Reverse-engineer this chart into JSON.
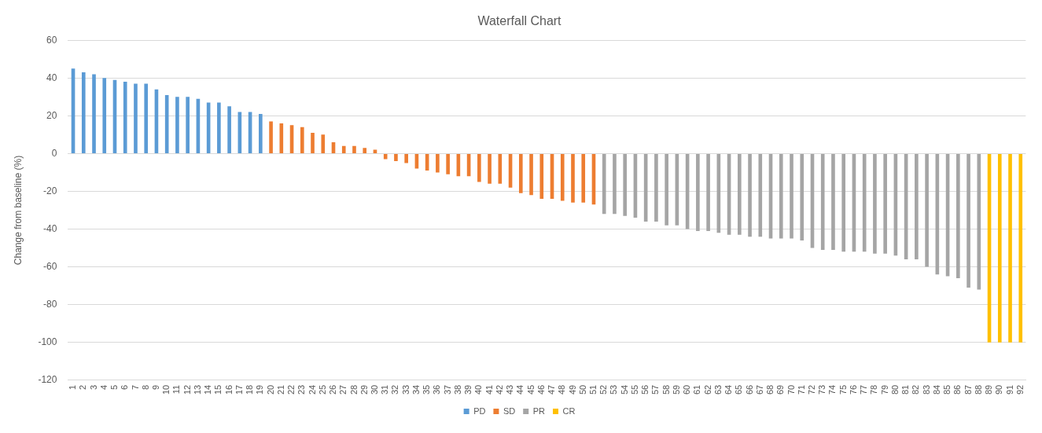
{
  "chart_data": {
    "type": "bar",
    "title": "Waterfall Chart",
    "ylabel": "Change from baseline (%)",
    "categories": [
      "1",
      "2",
      "3",
      "4",
      "5",
      "6",
      "7",
      "8",
      "9",
      "10",
      "11",
      "12",
      "13",
      "14",
      "15",
      "16",
      "17",
      "18",
      "19",
      "20",
      "21",
      "22",
      "23",
      "24",
      "25",
      "26",
      "27",
      "28",
      "29",
      "30",
      "31",
      "32",
      "33",
      "34",
      "35",
      "36",
      "37",
      "38",
      "39",
      "40",
      "41",
      "42",
      "43",
      "44",
      "45",
      "46",
      "47",
      "48",
      "49",
      "50",
      "51",
      "52",
      "53",
      "54",
      "55",
      "56",
      "57",
      "58",
      "59",
      "60",
      "61",
      "62",
      "63",
      "64",
      "65",
      "66",
      "67",
      "68",
      "69",
      "70",
      "71",
      "72",
      "73",
      "74",
      "75",
      "76",
      "77",
      "78",
      "79",
      "80",
      "81",
      "82",
      "83",
      "84",
      "85",
      "86",
      "87",
      "88",
      "89",
      "90",
      "91",
      "92"
    ],
    "series": [
      {
        "name": "PD",
        "color": "#5b9bd5",
        "values": [
          45,
          43,
          42,
          40,
          39,
          38,
          37,
          37,
          34,
          31,
          30,
          30,
          29,
          27,
          27,
          25,
          22,
          22,
          21,
          null,
          null,
          null,
          null,
          null,
          null,
          null,
          null,
          null,
          null,
          null,
          null,
          null,
          null,
          null,
          null,
          null,
          null,
          null,
          null,
          null,
          null,
          null,
          null,
          null,
          null,
          null,
          null,
          null,
          null,
          null,
          null,
          null,
          null,
          null,
          null,
          null,
          null,
          null,
          null,
          null,
          null,
          null,
          null,
          null,
          null,
          null,
          null,
          null,
          null,
          null,
          null,
          null,
          null,
          null,
          null,
          null,
          null,
          null,
          null,
          null,
          null,
          null,
          null,
          null,
          null,
          null,
          null,
          null,
          null,
          null,
          null,
          null
        ]
      },
      {
        "name": "SD",
        "color": "#ed7d31",
        "values": [
          null,
          null,
          null,
          null,
          null,
          null,
          null,
          null,
          null,
          null,
          null,
          null,
          null,
          null,
          null,
          null,
          null,
          null,
          null,
          17,
          16,
          15,
          14,
          11,
          10,
          6,
          4,
          4,
          3,
          2,
          -3,
          -4,
          -5,
          -8,
          -9,
          -10,
          -11,
          -12,
          -12,
          -15,
          -16,
          -16,
          -18,
          -21,
          -22,
          -24,
          -24,
          -25,
          -26,
          -26,
          -27,
          null,
          null,
          null,
          null,
          null,
          null,
          null,
          null,
          null,
          null,
          null,
          null,
          null,
          null,
          null,
          null,
          null,
          null,
          null,
          null,
          null,
          null,
          null,
          null,
          null,
          null,
          null,
          null,
          null,
          null,
          null,
          null,
          null,
          null,
          null,
          null,
          null,
          null,
          null,
          null,
          null
        ]
      },
      {
        "name": "PR",
        "color": "#a5a5a5",
        "values": [
          null,
          null,
          null,
          null,
          null,
          null,
          null,
          null,
          null,
          null,
          null,
          null,
          null,
          null,
          null,
          null,
          null,
          null,
          null,
          null,
          null,
          null,
          null,
          null,
          null,
          null,
          null,
          null,
          null,
          null,
          null,
          null,
          null,
          null,
          null,
          null,
          null,
          null,
          null,
          null,
          null,
          null,
          null,
          null,
          null,
          null,
          null,
          null,
          null,
          null,
          null,
          -32,
          -32,
          -33,
          -34,
          -36,
          -36,
          -38,
          -38,
          -40,
          -41,
          -41,
          -42,
          -43,
          -43,
          -44,
          -44,
          -45,
          -45,
          -45,
          -46,
          -50,
          -51,
          -51,
          -52,
          -52,
          -52,
          -53,
          -53,
          -54,
          -56,
          -56,
          -60,
          -64,
          -65,
          -66,
          -71,
          -72,
          null,
          null,
          null,
          null
        ]
      },
      {
        "name": "CR",
        "color": "#ffc000",
        "values": [
          null,
          null,
          null,
          null,
          null,
          null,
          null,
          null,
          null,
          null,
          null,
          null,
          null,
          null,
          null,
          null,
          null,
          null,
          null,
          null,
          null,
          null,
          null,
          null,
          null,
          null,
          null,
          null,
          null,
          null,
          null,
          null,
          null,
          null,
          null,
          null,
          null,
          null,
          null,
          null,
          null,
          null,
          null,
          null,
          null,
          null,
          null,
          null,
          null,
          null,
          null,
          null,
          null,
          null,
          null,
          null,
          null,
          null,
          null,
          null,
          null,
          null,
          null,
          null,
          null,
          null,
          null,
          null,
          null,
          null,
          null,
          null,
          null,
          null,
          null,
          null,
          null,
          null,
          null,
          null,
          null,
          null,
          null,
          null,
          null,
          null,
          null,
          null,
          -100,
          -100,
          -100,
          -100
        ]
      }
    ],
    "ylim": [
      -120,
      60
    ],
    "yticks": [
      -120,
      -100,
      -80,
      -60,
      -40,
      -20,
      0,
      20,
      40,
      60
    ],
    "grid": "y",
    "legend": "bottom"
  }
}
